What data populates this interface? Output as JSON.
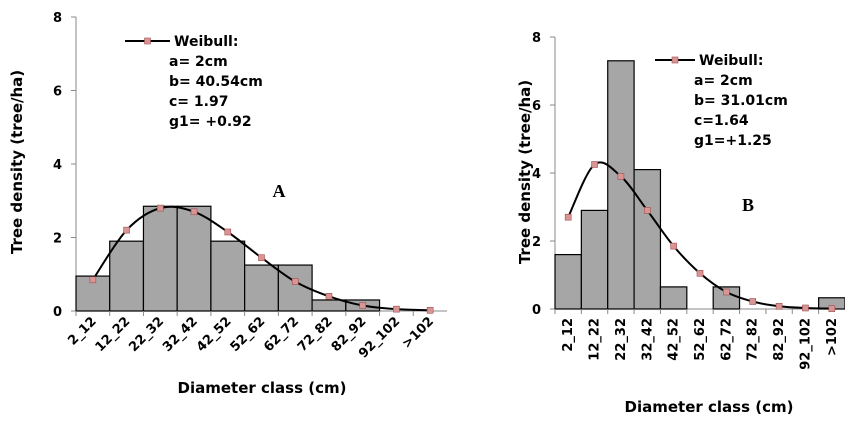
{
  "chart_data": [
    {
      "type": "bar",
      "panel": "A",
      "categories": [
        "2_12",
        "12_22",
        "22_32",
        "32_42",
        "42_52",
        "52_62",
        "62_72",
        "72_82",
        "82_92",
        "92_102",
        ">102"
      ],
      "values": [
        0.95,
        1.9,
        2.85,
        2.85,
        1.9,
        1.25,
        1.25,
        0.3,
        0.3,
        0,
        0
      ],
      "series": [
        {
          "name": "Weibull:",
          "type": "line",
          "values": [
            0.85,
            2.2,
            2.8,
            2.7,
            2.15,
            1.45,
            0.8,
            0.4,
            0.15,
            0.05,
            0.02
          ]
        }
      ],
      "ylim": [
        0,
        8
      ],
      "yticks": [
        0,
        2,
        4,
        6,
        8
      ],
      "xlabel": "Diameter class (cm)",
      "ylabel": "Tree density (tree/ha)",
      "legend": [
        "Weibull:",
        "a= 2cm",
        "b= 40.54cm",
        "c= 1.97",
        "g1= +0.92"
      ],
      "bar_color": "#a6a6a6",
      "line_color": "#000000",
      "marker_color": "#d99594"
    },
    {
      "type": "bar",
      "panel": "B",
      "categories": [
        "2_12",
        "12_22",
        "22_32",
        "32_42",
        "42_52",
        "52_62",
        "62_72",
        "72_82",
        "82_92",
        "92_102",
        ">102"
      ],
      "values": [
        1.6,
        2.9,
        7.3,
        4.1,
        0.65,
        0,
        0.65,
        0,
        0,
        0,
        0.33
      ],
      "series": [
        {
          "name": "Weibull:",
          "type": "line",
          "values": [
            2.7,
            4.25,
            3.9,
            2.9,
            1.85,
            1.05,
            0.5,
            0.22,
            0.08,
            0.03,
            0.01
          ]
        }
      ],
      "ylim": [
        0,
        8
      ],
      "yticks": [
        0,
        2,
        4,
        6,
        8
      ],
      "xlabel": "Diameter class (cm)",
      "ylabel": "Tree density (tree/ha)",
      "legend": [
        "Weibull:",
        "a= 2cm",
        "b= 31.01cm",
        "c=1.64",
        "g1=+1.25"
      ],
      "bar_color": "#a6a6a6",
      "line_color": "#000000",
      "marker_color": "#d99594"
    }
  ]
}
